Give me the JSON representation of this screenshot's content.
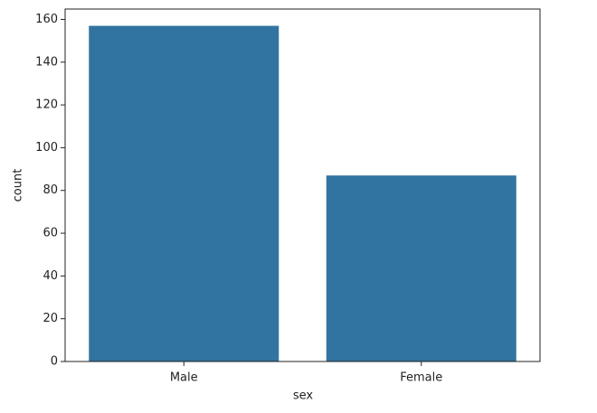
{
  "chart_data": {
    "type": "bar",
    "x_label": "sex",
    "y_label": "count",
    "categories": [
      "Male",
      "Female"
    ],
    "values": [
      157,
      87
    ],
    "color": "#3274a1",
    "ylim": [
      0,
      164.85
    ],
    "yticks": [
      0,
      20,
      40,
      60,
      80,
      100,
      120,
      140,
      160
    ],
    "grid": false
  }
}
